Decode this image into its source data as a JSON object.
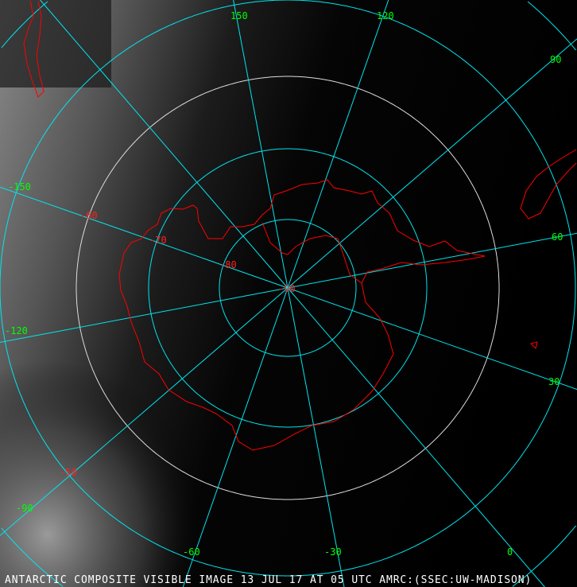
{
  "caption": "ANTARCTIC COMPOSITE VISIBLE IMAGE 13 JUL 17 AT 05 UTC AMRC:(SSEC:UW-MADISON)",
  "projection": "south-polar-stereographic",
  "colors": {
    "grid": "#00e5ee",
    "coastline": "#ff0000",
    "meridian_labels": "#00ff00",
    "latitude_labels": "#ff2020",
    "caption": "#ffffff"
  },
  "latitude_labels": [
    "-90",
    "-80",
    "-70",
    "-60",
    "-50"
  ],
  "meridian_labels": [
    {
      "lon": 150,
      "text": "150"
    },
    {
      "lon": 120,
      "text": "120"
    },
    {
      "lon": 90,
      "text": "90"
    },
    {
      "lon": 60,
      "text": "60"
    },
    {
      "lon": 30,
      "text": "30"
    },
    {
      "lon": 0,
      "text": "0"
    },
    {
      "lon": -30,
      "text": "-30"
    },
    {
      "lon": -60,
      "text": "-60"
    },
    {
      "lon": -90,
      "text": "-90"
    },
    {
      "lon": -120,
      "text": "-120"
    },
    {
      "lon": -150,
      "text": "-150"
    }
  ]
}
